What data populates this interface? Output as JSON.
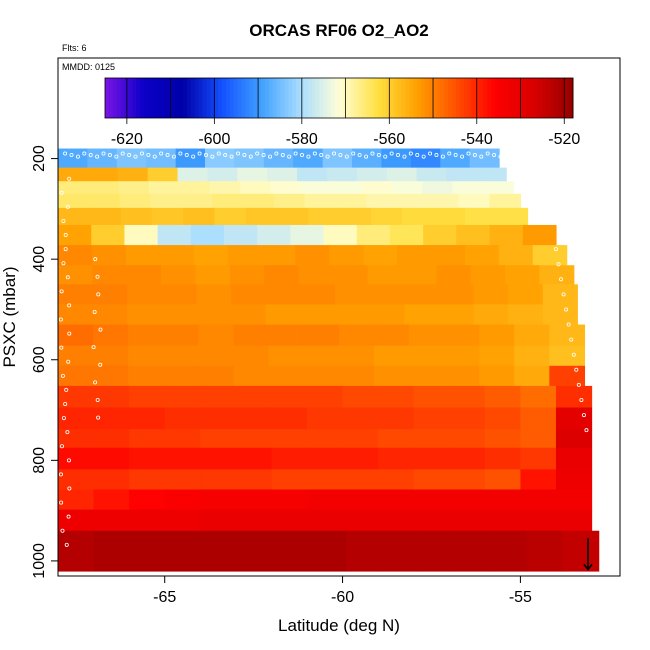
{
  "title": "ORCAS RF06 O2_AO2",
  "subtitle_flights": "Flts: 6",
  "subtitle_date": "MMDD: 0125",
  "chart_data": {
    "type": "heatmap",
    "title": "ORCAS RF06 O2_AO2",
    "xlabel": "Latitude (deg N)",
    "ylabel": "PSXC (mbar)",
    "xlim": [
      -68.0,
      -52.2
    ],
    "ylim": [
      1030,
      0
    ],
    "x_ticks": [
      -65,
      -60,
      -55
    ],
    "y_ticks": [
      200,
      400,
      600,
      800,
      1000
    ],
    "colorbar": {
      "range": [
        -625,
        -518
      ],
      "ticks": [
        -620,
        -600,
        -580,
        -560,
        -540,
        -520
      ],
      "colors": [
        "#7c14e6",
        "#0a00c8",
        "#0000a8",
        "#1450ff",
        "#3fa0ff",
        "#a8dcff",
        "#ffffd8",
        "#ffe040",
        "#ffa000",
        "#ff5000",
        "#ff0000",
        "#d80000",
        "#960000"
      ]
    },
    "rows": [
      {
        "p_top": 180,
        "p_bot": 218,
        "lat_end": -55.6,
        "values": [
          -588,
          -586,
          -584,
          -585,
          -590,
          -583,
          -584,
          -586,
          -588,
          -584,
          -587,
          -590,
          -592,
          -588,
          -585
        ]
      },
      {
        "p_top": 218,
        "p_bot": 245,
        "lat_end": -55.4,
        "values": [
          -555,
          -555,
          -556,
          -560,
          -575,
          -576,
          -574,
          -575,
          -578,
          -577,
          -576,
          -575,
          -577,
          -578,
          -578
        ]
      },
      {
        "p_top": 245,
        "p_bot": 270,
        "lat_end": -55.2,
        "values": [
          -566,
          -566,
          -567,
          -568,
          -568,
          -569,
          -570,
          -571,
          -572,
          -572,
          -571,
          -572,
          -573,
          -572,
          -572
        ]
      },
      {
        "p_top": 270,
        "p_bot": 298,
        "lat_end": -55.0,
        "values": [
          -565,
          -565,
          -566,
          -567,
          -567,
          -566,
          -566,
          -567,
          -568,
          -568,
          -569,
          -569,
          -569,
          -570,
          -568
        ]
      },
      {
        "p_top": 298,
        "p_bot": 332,
        "lat_end": -54.8,
        "values": [
          -557,
          -557,
          -558,
          -559,
          -558,
          -560,
          -559,
          -559,
          -560,
          -560,
          -561,
          -562,
          -562,
          -563,
          -563
        ]
      },
      {
        "p_top": 332,
        "p_bot": 372,
        "lat_end": -54.0,
        "values": [
          -554,
          -560,
          -570,
          -578,
          -580,
          -578,
          -576,
          -574,
          -570,
          -566,
          -564,
          -560,
          -558,
          -556,
          -553
        ]
      },
      {
        "p_top": 372,
        "p_bot": 412,
        "lat_end": -53.7,
        "values": [
          -551,
          -552,
          -553,
          -553,
          -554,
          -553,
          -553,
          -552,
          -553,
          -554,
          -553,
          -553,
          -554,
          -556,
          -560
        ]
      },
      {
        "p_top": 412,
        "p_bot": 450,
        "lat_end": -53.5,
        "values": [
          -552,
          -551,
          -551,
          -552,
          -553,
          -552,
          -551,
          -552,
          -552,
          -553,
          -553,
          -552,
          -553,
          -554,
          -556
        ]
      },
      {
        "p_top": 450,
        "p_bot": 490,
        "lat_end": -53.4,
        "values": [
          -550,
          -550,
          -551,
          -551,
          -552,
          -551,
          -551,
          -551,
          -552,
          -552,
          -552,
          -552,
          -553,
          -554,
          -557
        ]
      },
      {
        "p_top": 490,
        "p_bot": 530,
        "lat_end": -53.4,
        "values": [
          -551,
          -551,
          -552,
          -552,
          -552,
          -552,
          -553,
          -553,
          -553,
          -553,
          -554,
          -554,
          -555,
          -556,
          -557
        ]
      },
      {
        "p_top": 530,
        "p_bot": 572,
        "lat_end": -53.2,
        "values": [
          -548,
          -549,
          -550,
          -550,
          -551,
          -550,
          -550,
          -550,
          -551,
          -551,
          -552,
          -552,
          -553,
          -555,
          -557
        ]
      },
      {
        "p_top": 572,
        "p_bot": 612,
        "lat_end": -53.2,
        "values": [
          -550,
          -550,
          -551,
          -551,
          -551,
          -551,
          -552,
          -552,
          -552,
          -553,
          -553,
          -553,
          -554,
          -556,
          -558
        ]
      },
      {
        "p_top": 612,
        "p_bot": 652,
        "lat_end": -53.2,
        "values": [
          -549,
          -549,
          -550,
          -550,
          -550,
          -551,
          -551,
          -551,
          -551,
          -552,
          -552,
          -552,
          -553,
          -555,
          -543
        ]
      },
      {
        "p_top": 652,
        "p_bot": 695,
        "lat_end": -53.0,
        "values": [
          -542,
          -542,
          -543,
          -543,
          -543,
          -543,
          -543,
          -543,
          -544,
          -544,
          -545,
          -545,
          -546,
          -548,
          -541
        ]
      },
      {
        "p_top": 695,
        "p_bot": 738,
        "lat_end": -53.0,
        "values": [
          -540,
          -540,
          -540,
          -541,
          -541,
          -541,
          -541,
          -542,
          -542,
          -542,
          -543,
          -543,
          -544,
          -546,
          -530
        ]
      },
      {
        "p_top": 738,
        "p_bot": 775,
        "lat_end": -53.0,
        "values": [
          -541,
          -541,
          -542,
          -542,
          -543,
          -543,
          -543,
          -543,
          -543,
          -544,
          -544,
          -544,
          -545,
          -546,
          -528
        ]
      },
      {
        "p_top": 775,
        "p_bot": 818,
        "lat_end": -53.0,
        "values": [
          -537,
          -537,
          -538,
          -538,
          -538,
          -538,
          -539,
          -539,
          -539,
          -540,
          -540,
          -540,
          -541,
          -542,
          -531
        ]
      },
      {
        "p_top": 818,
        "p_bot": 858,
        "lat_end": -53.0,
        "values": [
          -541,
          -541,
          -542,
          -542,
          -542,
          -542,
          -543,
          -543,
          -543,
          -543,
          -544,
          -544,
          -545,
          -538,
          -532
        ]
      },
      {
        "p_top": 858,
        "p_bot": 898,
        "lat_end": -53.0,
        "values": [
          -540,
          -538,
          -536,
          -535,
          -534,
          -534,
          -534,
          -533,
          -533,
          -533,
          -533,
          -533,
          -533,
          -533,
          -533
        ]
      },
      {
        "p_top": 898,
        "p_bot": 940,
        "lat_end": -53.0,
        "values": [
          -532,
          -532,
          -532,
          -532,
          -531,
          -531,
          -531,
          -531,
          -531,
          -531,
          -531,
          -531,
          -531,
          -531,
          -531
        ]
      },
      {
        "p_top": 940,
        "p_bot": 1020,
        "lat_end": -52.8,
        "values": [
          -522,
          -521,
          -521,
          -521,
          -521,
          -521,
          -521,
          -521,
          -522,
          -522,
          -522,
          -522,
          -522,
          -523,
          -524
        ]
      }
    ]
  }
}
